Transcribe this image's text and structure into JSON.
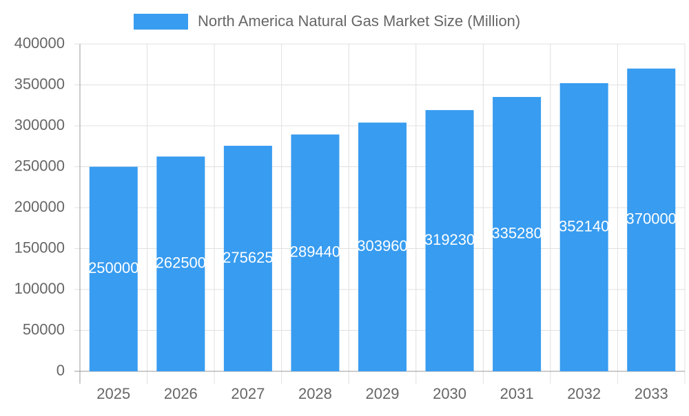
{
  "chart_data": {
    "type": "bar",
    "series": [
      {
        "name": "North America Natural Gas Market Size (Million)",
        "color": "#389cf0",
        "values": [
          250000,
          262500,
          275625,
          289440,
          303960,
          319230,
          335280,
          352140,
          370000
        ]
      }
    ],
    "categories": [
      "2025",
      "2026",
      "2027",
      "2028",
      "2029",
      "2030",
      "2031",
      "2032",
      "2033"
    ],
    "ylim": [
      0,
      400000
    ],
    "yticks": [
      0,
      50000,
      100000,
      150000,
      200000,
      250000,
      300000,
      350000,
      400000
    ],
    "grid": true,
    "legend": "top",
    "data_labels": true
  }
}
